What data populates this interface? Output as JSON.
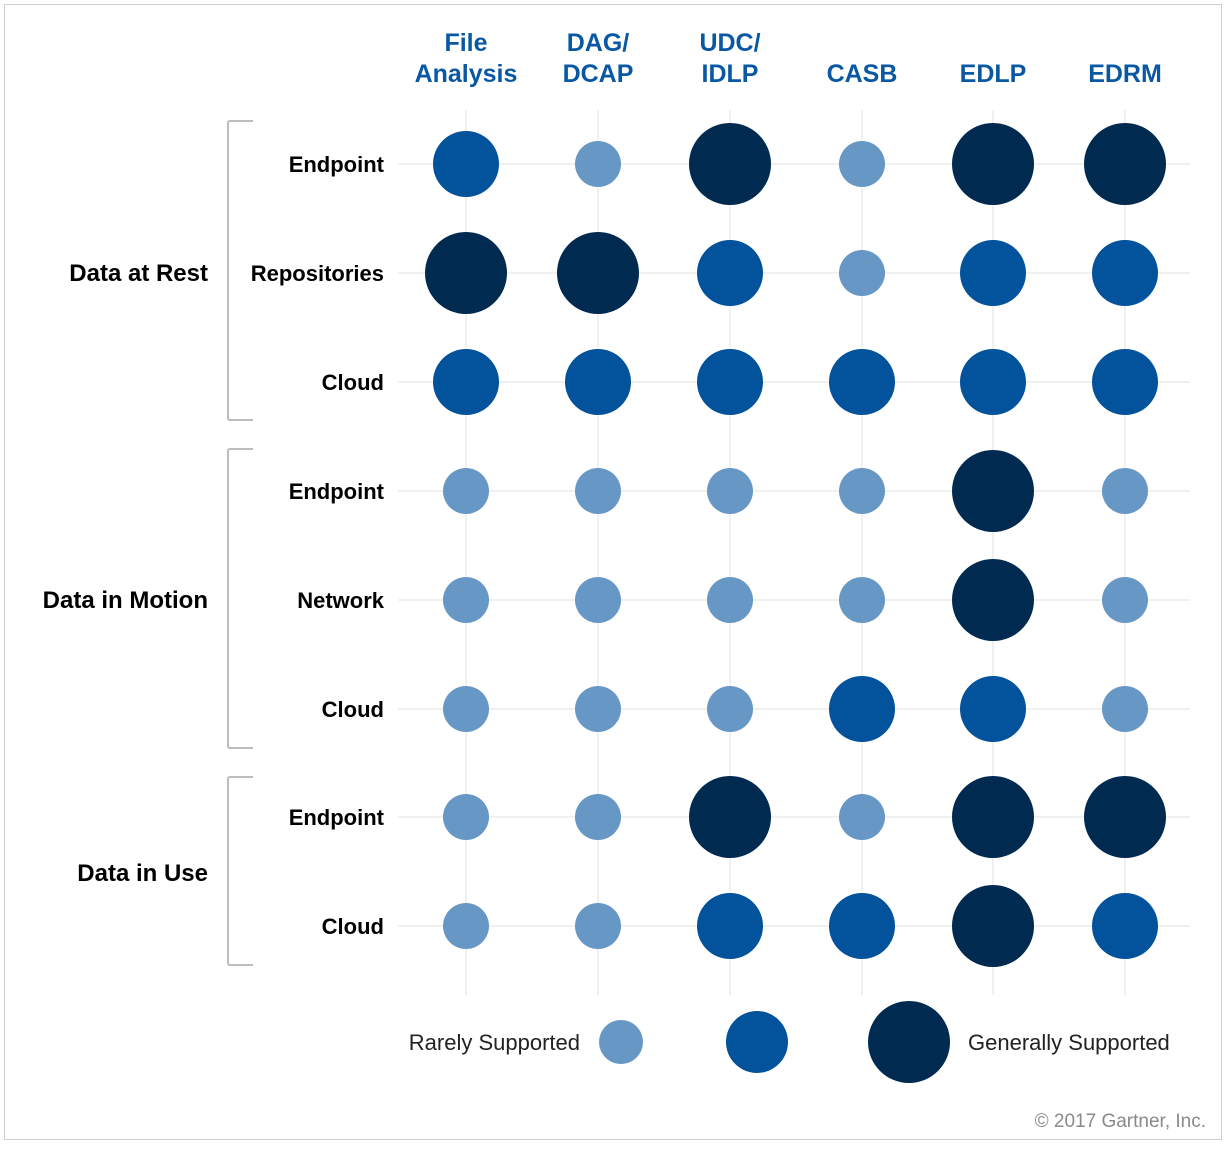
{
  "chart_data": {
    "type": "matrix-bubble",
    "columns": [
      "File Analysis",
      "DAG/ DCAP",
      "UDC/ IDLP",
      "CASB",
      "EDLP",
      "EDRM"
    ],
    "column_lines": [
      [
        "File",
        "Analysis"
      ],
      [
        "DAG/",
        "DCAP"
      ],
      [
        "UDC/",
        "IDLP"
      ],
      [
        "",
        "CASB"
      ],
      [
        "",
        "EDLP"
      ],
      [
        "",
        "EDRM"
      ]
    ],
    "groups": [
      {
        "name": "Data at Rest",
        "rows": [
          "Endpoint",
          "Repositories",
          "Cloud"
        ]
      },
      {
        "name": "Data in Motion",
        "rows": [
          "Endpoint",
          "Network",
          "Cloud"
        ]
      },
      {
        "name": "Data in Use",
        "rows": [
          "Endpoint",
          "Cloud"
        ]
      }
    ],
    "scale": {
      "1": "Rarely Supported",
      "2": "",
      "3": "Generally Supported"
    },
    "values": [
      [
        2,
        1,
        3,
        1,
        3,
        3
      ],
      [
        3,
        3,
        2,
        1,
        2,
        2
      ],
      [
        2,
        2,
        2,
        2,
        2,
        2
      ],
      [
        1,
        1,
        1,
        1,
        3,
        1
      ],
      [
        1,
        1,
        1,
        1,
        3,
        1
      ],
      [
        1,
        1,
        1,
        2,
        2,
        1
      ],
      [
        1,
        1,
        3,
        1,
        3,
        3
      ],
      [
        1,
        1,
        2,
        2,
        3,
        2
      ]
    ],
    "colors": {
      "1": "#6797c4",
      "2": "#02529c",
      "3": "#002a4f"
    }
  },
  "legend": {
    "low_label": "Rarely Supported",
    "high_label": "Generally Supported"
  },
  "copyright": "© 2017 Gartner, Inc."
}
